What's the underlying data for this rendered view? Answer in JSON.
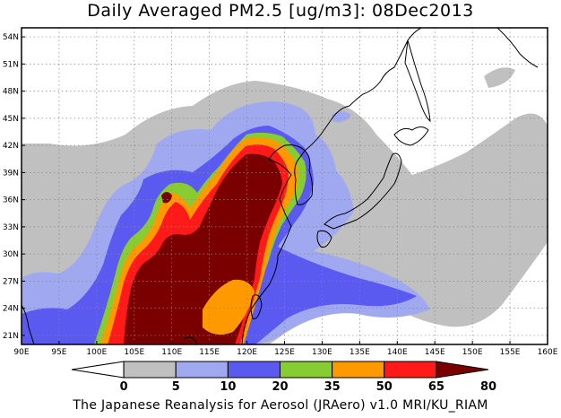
{
  "title": "Daily Averaged PM2.5 [ug/m3]: 08Dec2013",
  "footer": "The Japanese Reanalysis for Aerosol (JRAero) v1.0 MRI/KU_RIAM",
  "map": {
    "lon_range": [
      90,
      160
    ],
    "lat_range": [
      20,
      55
    ],
    "x_ticks": [
      "90E",
      "95E",
      "100E",
      "105E",
      "110E",
      "115E",
      "120E",
      "125E",
      "130E",
      "135E",
      "140E",
      "145E",
      "150E",
      "155E",
      "160E"
    ],
    "y_ticks": [
      "21N",
      "24N",
      "27N",
      "30N",
      "33N",
      "36N",
      "39N",
      "42N",
      "45N",
      "48N",
      "51N",
      "54N"
    ],
    "grid": true
  },
  "colorbar": {
    "levels": [
      "0",
      "5",
      "10",
      "20",
      "35",
      "50",
      "65",
      "80"
    ],
    "colors": [
      "#ffffff",
      "#c0c0c0",
      "#a0a8f0",
      "#5a5af0",
      "#88cc33",
      "#ff9900",
      "#ff1a1a",
      "#7a0000"
    ]
  }
}
